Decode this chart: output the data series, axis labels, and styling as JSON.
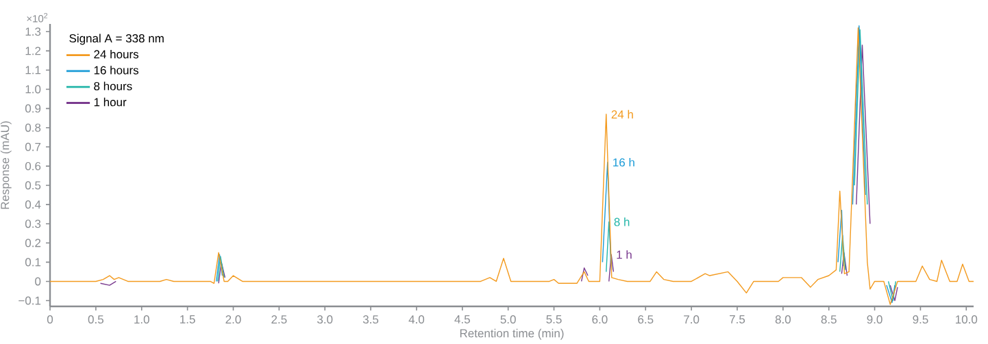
{
  "chart_data": {
    "type": "line",
    "xlabel": "Retention time (min)",
    "ylabel": "Response (mAU)",
    "legend_title": "Signal A = 338 nm",
    "legend": "top left",
    "marker": "none",
    "line_style": "solid",
    "grid": false,
    "x": [
      0,
      0.5,
      0.58,
      0.65,
      0.7,
      0.75,
      0.85,
      1.2,
      1.27,
      1.35,
      1.75,
      1.79,
      1.84,
      1.9,
      1.94,
      2.0,
      2.1,
      4.7,
      4.8,
      4.87,
      4.95,
      5.03,
      5.45,
      5.5,
      5.55,
      5.75,
      5.83,
      5.88,
      6.0,
      6.07,
      6.13,
      6.2,
      6.3,
      6.4,
      6.55,
      6.62,
      6.7,
      6.8,
      7.0,
      7.15,
      7.2,
      7.4,
      7.5,
      7.6,
      7.68,
      7.8,
      7.95,
      8.0,
      8.2,
      8.3,
      8.38,
      8.5,
      8.58,
      8.62,
      8.67,
      8.72,
      8.82,
      8.92,
      8.95,
      9.0,
      9.1,
      9.17,
      9.25,
      9.45,
      9.52,
      9.6,
      9.68,
      9.73,
      9.82,
      9.9,
      9.96,
      10.03,
      10.08
    ],
    "series": [
      {
        "name": "24 hours",
        "color": "#f39a1e",
        "values": [
          0,
          0,
          0.01,
          0.03,
          0.01,
          0.02,
          0,
          0,
          0.01,
          0,
          0,
          -0.01,
          0.15,
          0,
          0,
          0.03,
          0,
          0,
          0.02,
          0,
          0.12,
          0,
          0,
          0.01,
          -0.01,
          -0.01,
          0.05,
          0,
          0,
          0.87,
          0.02,
          0.01,
          0,
          0,
          0,
          0.05,
          0.01,
          0,
          0,
          0.04,
          0.03,
          0.05,
          0,
          -0.06,
          0,
          0,
          0,
          0.02,
          0.02,
          -0.03,
          0.01,
          0.03,
          0.06,
          0.47,
          0.04,
          0.05,
          1.32,
          0.1,
          -0.04,
          0,
          0,
          -0.12,
          0,
          0,
          0.08,
          0.01,
          0,
          0.11,
          0,
          0,
          0.09,
          0,
          0
        ]
      },
      {
        "name": "16 hours",
        "color": "#1b9bd7",
        "x": [
          1.815,
          1.85,
          1.88,
          3,
          6.03,
          6.085,
          6.12,
          7,
          8.6,
          8.64,
          8.66,
          8.7,
          8.76,
          8.83,
          8.9,
          9.0,
          9.13,
          9.19,
          9.22
        ],
        "values": [
          0,
          0.14,
          0.03,
          null,
          0.1,
          0.62,
          0.1,
          null,
          0.1,
          0.37,
          0.08,
          null,
          0.4,
          1.33,
          0.45,
          null,
          -0.02,
          -0.11,
          -0.02
        ]
      },
      {
        "name": "8 hours",
        "color": "#22b5a8",
        "x": [
          1.83,
          1.86,
          1.9,
          3,
          6.07,
          6.1,
          6.13,
          7,
          8.62,
          8.65,
          8.68,
          8.7,
          8.78,
          8.84,
          8.92,
          9.0,
          9.15,
          9.2,
          9.23
        ],
        "values": [
          0,
          0.13,
          0.02,
          null,
          0.05,
          0.31,
          0.06,
          null,
          0.05,
          0.24,
          0.06,
          null,
          0.5,
          1.31,
          0.4,
          null,
          0,
          -0.1,
          0
        ]
      },
      {
        "name": "1 hour",
        "color": "#7a3b8f",
        "x": [
          0.55,
          0.65,
          0.72,
          1.0,
          1.84,
          1.87,
          1.91,
          3,
          5.8,
          5.83,
          5.87,
          6.0,
          6.1,
          6.125,
          6.15,
          7,
          8.64,
          8.665,
          8.7,
          8.75,
          8.8,
          8.865,
          8.95,
          9.0,
          9.17,
          9.22,
          9.25
        ],
        "values": [
          -0.01,
          -0.02,
          0,
          null,
          -0.01,
          0.1,
          0.02,
          null,
          0,
          0.07,
          0.03,
          null,
          0,
          0.14,
          0.05,
          null,
          0.04,
          0.15,
          0.03,
          null,
          0.4,
          1.23,
          0.3,
          null,
          -0.02,
          -0.1,
          -0.03
        ]
      }
    ],
    "xlim": [
      0,
      10.08
    ],
    "ylim": [
      -0.13,
      1.34
    ],
    "xticks": [
      0,
      0.5,
      {
        "value": 1,
        "label": "1.0"
      },
      1.5,
      {
        "value": 2,
        "label": "2.0"
      },
      2.5,
      {
        "value": 3,
        "label": "3.0"
      },
      3.5,
      {
        "value": 4,
        "label": "4.0"
      },
      4.5,
      {
        "value": 5,
        "label": "5.0"
      },
      5.5,
      {
        "value": 6,
        "label": "6.0"
      },
      6.5,
      {
        "value": 7,
        "label": "7.0"
      },
      7.5,
      {
        "value": 8,
        "label": "8.0"
      },
      8.5,
      {
        "value": 9,
        "label": "9.0"
      },
      9.5,
      {
        "value": 10,
        "label": "10.0"
      }
    ],
    "yticks": [
      {
        "value": -0.1,
        "label": "−0.1"
      },
      0,
      0.1,
      0.2,
      0.3,
      0.4,
      0.5,
      0.6,
      0.7,
      0.8,
      0.9,
      {
        "value": 1,
        "label": "1.0"
      },
      1.1,
      1.2,
      1.3
    ],
    "annotations": [
      "×10$^{2}$",
      {
        "text": "24 h",
        "x": 6.07,
        "y": 0.87
      },
      {
        "text": "16 h",
        "x": 6.085,
        "y": 0.62
      },
      {
        "text": "8 h",
        "x": 6.1,
        "y": 0.31
      },
      {
        "text": "1 h",
        "x": 6.125,
        "y": 0.14
      }
    ]
  }
}
